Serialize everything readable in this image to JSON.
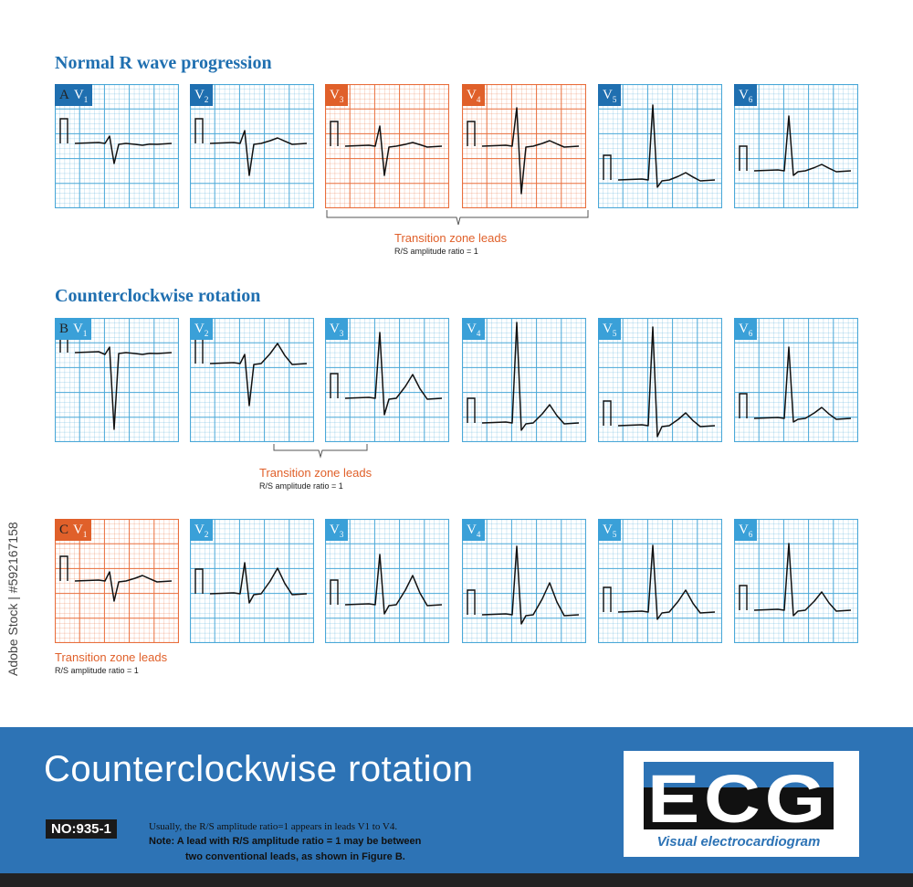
{
  "sections": {
    "a_title": "Normal R wave progression",
    "b_title": "Counterclockwise rotation"
  },
  "panel_letters": {
    "a": "A",
    "b": "B",
    "c": "C"
  },
  "lead_names": [
    "V1",
    "V2",
    "V3",
    "V4",
    "V5",
    "V6"
  ],
  "transition": {
    "label": "Transition zone leads",
    "sub": "R/S amplitude ratio = 1"
  },
  "banner": {
    "title": "Counterclockwise rotation",
    "badge": "NO:935-1",
    "note1": "Usually, the R/S amplitude ratio=1 appears in leads V1 to V4.",
    "note2": "Note: A lead with R/S amplitude ratio = 1 may be between",
    "note3": "two conventional leads, as shown in Figure B."
  },
  "logo": {
    "text": "ECG",
    "subtitle": "Visual electrocardiogram"
  },
  "watermark": {
    "side_text": "Adobe Stock | #592167158"
  },
  "colors": {
    "blue_grid": "#4aa8d8",
    "orange_grid": "#e96f3d",
    "tag_dark_blue": "#1f6fb0",
    "tag_light_blue": "#3aa0d8",
    "tag_orange": "#e0602a",
    "banner": "#2d73b5"
  }
}
